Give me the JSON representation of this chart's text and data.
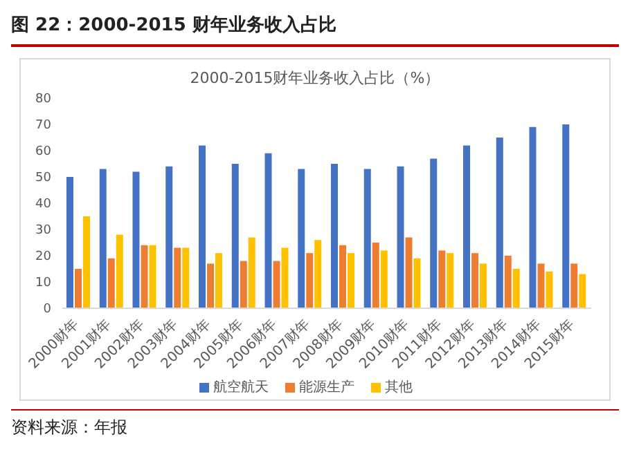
{
  "chart_data": {
    "type": "bar",
    "title": "图 22：2000-2015 财年业务收入占比",
    "subtitle": "2000-2015财年业务收入占比（%）",
    "categories": [
      "2000财年",
      "2001财年",
      "2002财年",
      "2003财年",
      "2004财年",
      "2005财年",
      "2006财年",
      "2007财年",
      "2008财年",
      "2009财年",
      "2010财年",
      "2011财年",
      "2012财年",
      "2013财年",
      "2014财年",
      "2015财年"
    ],
    "series": [
      {
        "name": "航空航天",
        "color": "#4472c4",
        "values": [
          50,
          53,
          52,
          54,
          62,
          55,
          59,
          53,
          55,
          53,
          54,
          57,
          62,
          65,
          69,
          70
        ]
      },
      {
        "name": "能源生产",
        "color": "#ed7d31",
        "values": [
          15,
          19,
          24,
          23,
          17,
          18,
          18,
          21,
          24,
          25,
          27,
          22,
          21,
          20,
          17,
          17
        ]
      },
      {
        "name": "其他",
        "color": "#ffc000",
        "values": [
          35,
          28,
          24,
          23,
          21,
          27,
          23,
          26,
          21,
          22,
          19,
          21,
          17,
          15,
          14,
          13
        ]
      }
    ],
    "ylim": [
      0,
      80
    ],
    "yticks": [
      0,
      10,
      20,
      30,
      40,
      50,
      60,
      70,
      80
    ],
    "grid": false,
    "legend": "bottom",
    "annotations": [
      "资料来源：年报"
    ]
  }
}
